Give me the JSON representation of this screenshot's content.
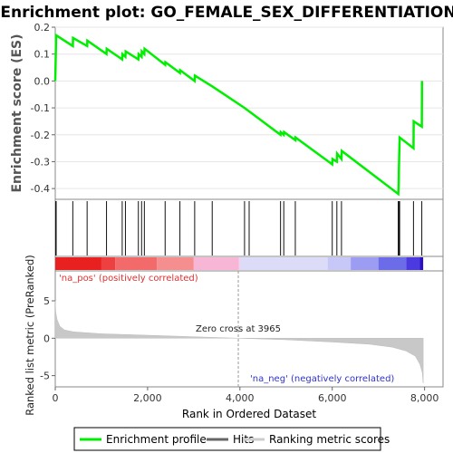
{
  "chart_data": {
    "type": "line",
    "title": "Enrichment plot: GO_FEMALE_SEX_DIFFERENTIATION",
    "top_panel": {
      "ylabel": "Enrichment score (ES)",
      "ylim": [
        -0.44,
        0.2
      ],
      "yticks": [
        0.2,
        0.1,
        0.0,
        -0.1,
        -0.2,
        -0.3,
        -0.4
      ],
      "ytick_labels": [
        "0.2",
        "0.1",
        "0.0",
        "-0.1",
        "-0.2",
        "-0.3",
        "-0.4"
      ],
      "series": [
        {
          "name": "Enrichment profile",
          "color": "#00ee00",
          "x": [
            0,
            20,
            380,
            385,
            690,
            695,
            1110,
            1115,
            1450,
            1455,
            1520,
            1525,
            1800,
            1805,
            1870,
            1875,
            1930,
            1935,
            2380,
            2385,
            2700,
            2705,
            3020,
            3025,
            3400,
            4100,
            4880,
            4885,
            4950,
            4955,
            5200,
            5205,
            6000,
            6005,
            6100,
            6105,
            6200,
            6205,
            7430,
            7440,
            7445,
            7450,
            7460,
            7760,
            7765,
            7940,
            7945
          ],
          "y": [
            0.0,
            0.17,
            0.13,
            0.16,
            0.13,
            0.15,
            0.1,
            0.12,
            0.08,
            0.1,
            0.09,
            0.11,
            0.08,
            0.1,
            0.09,
            0.11,
            0.1,
            0.12,
            0.06,
            0.07,
            0.03,
            0.04,
            0.0,
            0.02,
            -0.02,
            -0.1,
            -0.2,
            -0.19,
            -0.2,
            -0.19,
            -0.22,
            -0.21,
            -0.31,
            -0.29,
            -0.3,
            -0.27,
            -0.29,
            -0.26,
            -0.42,
            -0.38,
            -0.33,
            -0.28,
            -0.21,
            -0.25,
            -0.15,
            -0.17,
            0.0
          ]
        }
      ]
    },
    "hits": [
      10,
      20,
      380,
      690,
      1110,
      1450,
      1520,
      1800,
      1870,
      1930,
      2380,
      2700,
      3020,
      3400,
      4100,
      4200,
      4880,
      4950,
      5200,
      6000,
      6100,
      6200,
      7430,
      7440,
      7450,
      7460,
      7760,
      7940
    ],
    "gradient_bar": {
      "colors": [
        "#e82020",
        "#ee4040",
        "#f26a6a",
        "#f58e8e",
        "#f8b6d6",
        "#f8c8e8",
        "#dcdcf8",
        "#c8c8f8",
        "#9c9cf2",
        "#6c6ce8",
        "#4a3ae0",
        "#2a10c0"
      ],
      "stops": [
        0,
        1000,
        1300,
        2200,
        3000,
        3980,
        4000,
        5900,
        6400,
        7000,
        7600,
        7900,
        8000
      ]
    },
    "bottom_panel": {
      "ylabel": "Ranked list metric (PreRanked)",
      "ylim": [
        -6.5,
        9
      ],
      "yticks": [
        5,
        0,
        -5
      ],
      "ytick_labels": [
        "5",
        "0",
        "-5"
      ],
      "metric_profile": {
        "x": [
          0,
          10,
          40,
          100,
          200,
          400,
          1000,
          2000,
          3000,
          3965,
          5000,
          6000,
          6800,
          7300,
          7600,
          7800,
          7900,
          7950,
          7970
        ],
        "y": [
          5.0,
          3.5,
          2.5,
          1.6,
          1.1,
          0.85,
          0.6,
          0.4,
          0.2,
          0.0,
          -0.2,
          -0.5,
          -0.8,
          -1.2,
          -1.7,
          -2.4,
          -3.5,
          -4.6,
          -6.0
        ]
      },
      "zero_cross_label": "Zero cross at 3965",
      "zero_cross_x": 3965,
      "pos_label": "'na_pos' (positively correlated)",
      "neg_label": "'na_neg' (negatively correlated)"
    },
    "xlabel": "Rank in Ordered Dataset",
    "xlim": [
      0,
      8400
    ],
    "xticks": [
      0,
      2000,
      4000,
      6000,
      8000
    ],
    "xtick_labels": [
      "0",
      "2,000",
      "4,000",
      "6,000",
      "8,000"
    ],
    "legend": {
      "placement": "bottom",
      "entries": [
        {
          "label": "Enrichment profile",
          "color": "#00ee00"
        },
        {
          "label": "Hits",
          "color": "#666666"
        },
        {
          "label": "Ranking metric scores",
          "color": "#cccccc"
        }
      ]
    }
  }
}
